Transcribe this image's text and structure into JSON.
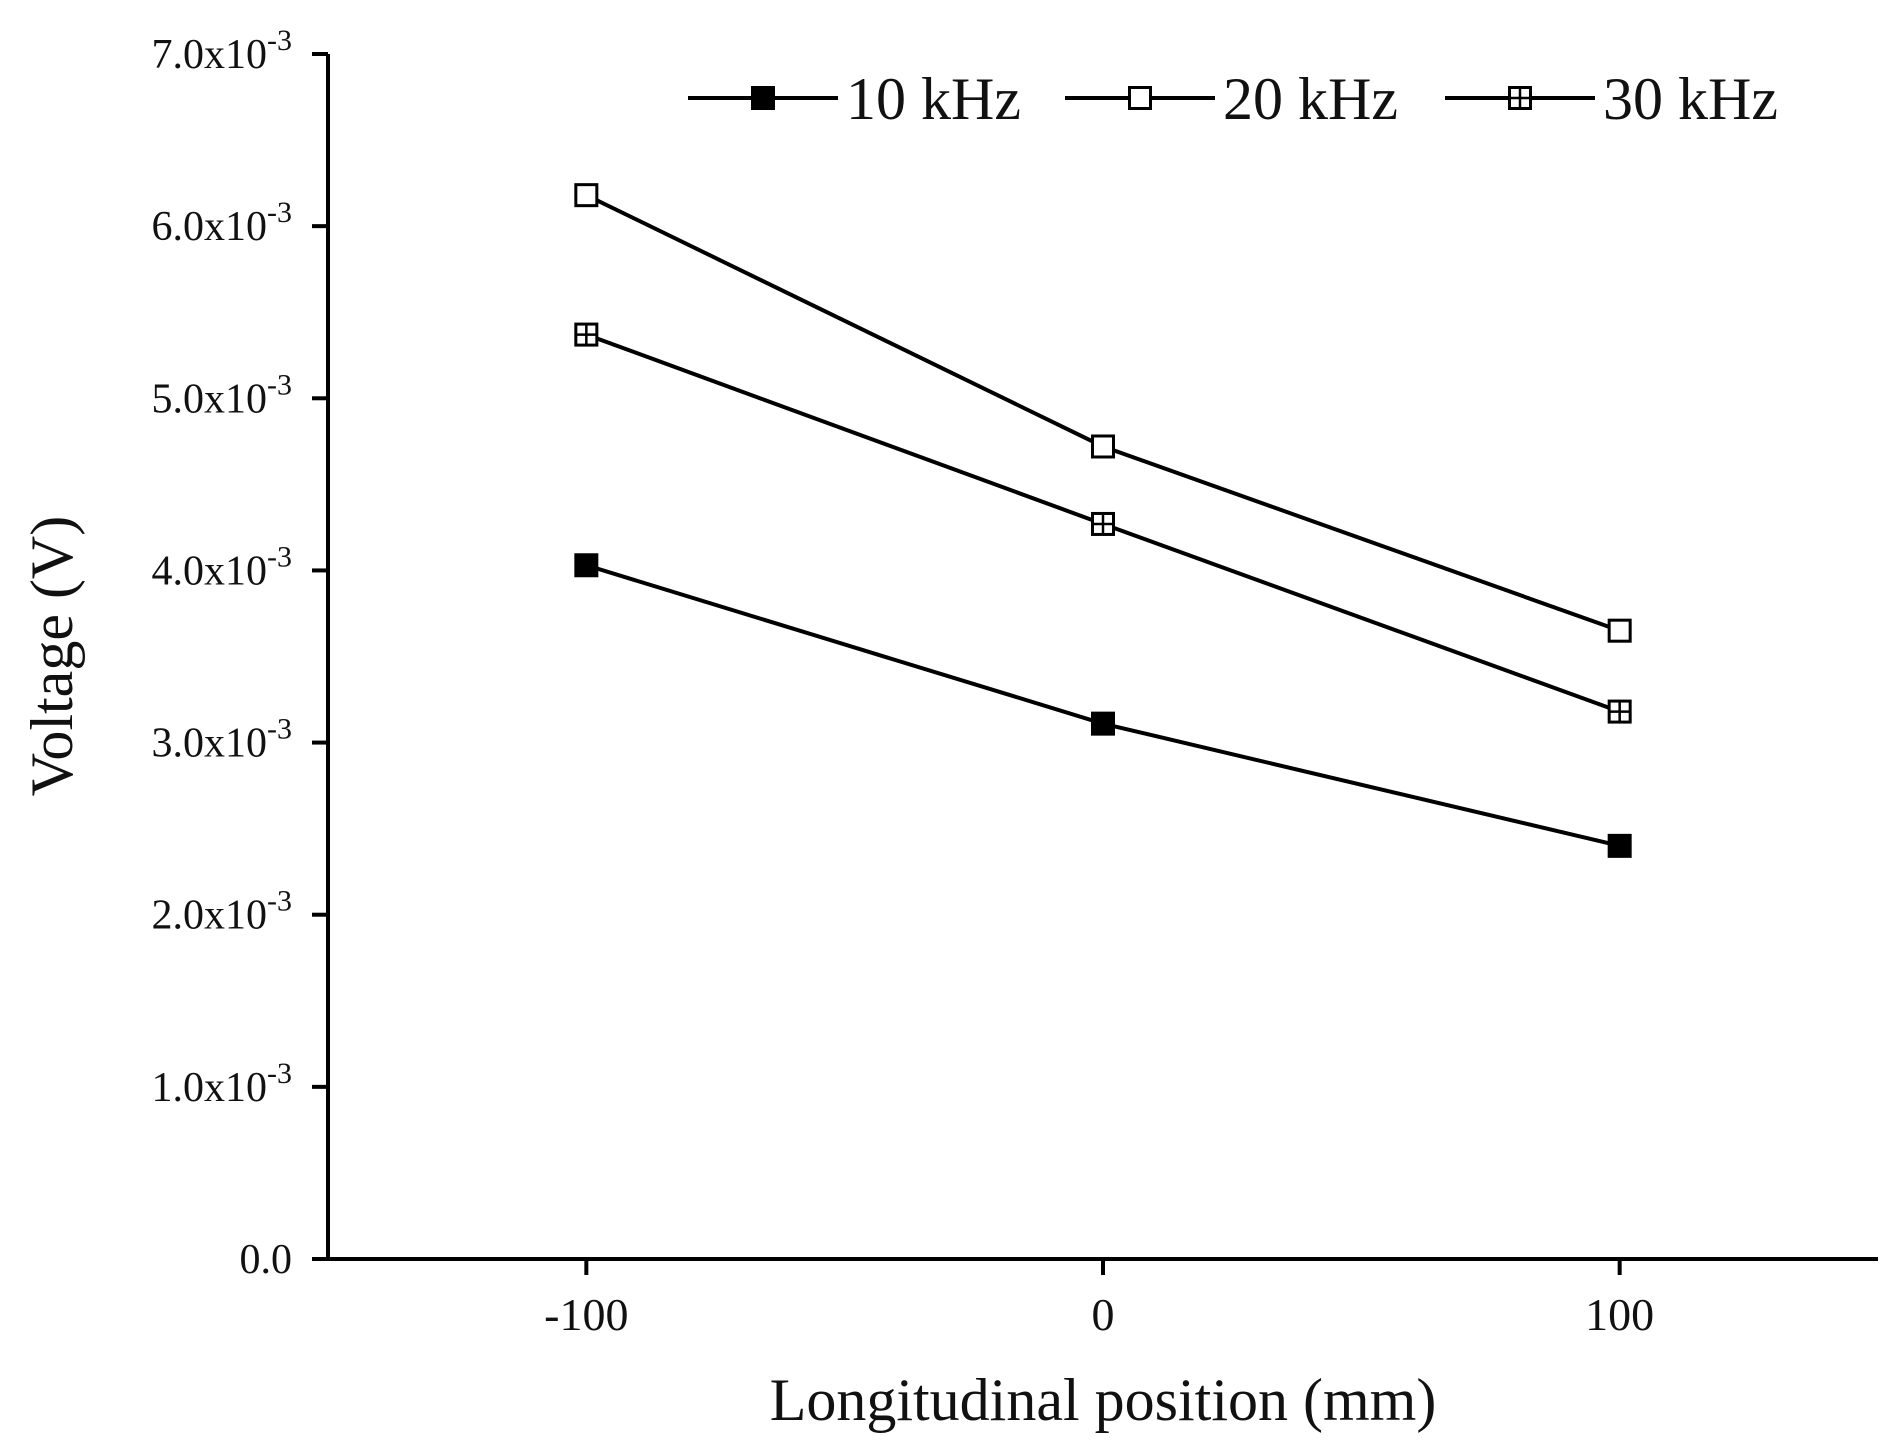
{
  "chart_data": {
    "type": "line",
    "title": "",
    "xlabel": "Longitudinal position (mm)",
    "ylabel": "Voltage (V)",
    "xlim": [
      -150,
      150
    ],
    "ylim": [
      0,
      0.007
    ],
    "x": [
      -100,
      0,
      100
    ],
    "x_ticks": [
      {
        "value": -100,
        "label": "-100"
      },
      {
        "value": 0,
        "label": "0"
      },
      {
        "value": 100,
        "label": "100"
      }
    ],
    "y_ticks": [
      {
        "value": 0.0,
        "mantissa": "0.0",
        "exp": ""
      },
      {
        "value": 0.001,
        "mantissa": "1.0x10",
        "exp": "-3"
      },
      {
        "value": 0.002,
        "mantissa": "2.0x10",
        "exp": "-3"
      },
      {
        "value": 0.003,
        "mantissa": "3.0x10",
        "exp": "-3"
      },
      {
        "value": 0.004,
        "mantissa": "4.0x10",
        "exp": "-3"
      },
      {
        "value": 0.005,
        "mantissa": "5.0x10",
        "exp": "-3"
      },
      {
        "value": 0.006,
        "mantissa": "6.0x10",
        "exp": "-3"
      },
      {
        "value": 0.007,
        "mantissa": "7.0x10",
        "exp": "-3"
      }
    ],
    "series": [
      {
        "name": "10 kHz",
        "marker": "filled-square",
        "values": [
          0.00403,
          0.00311,
          0.0024
        ]
      },
      {
        "name": "20 kHz",
        "marker": "open-square",
        "values": [
          0.00618,
          0.00472,
          0.00365
        ]
      },
      {
        "name": "30 kHz",
        "marker": "crossed-square",
        "values": [
          0.00537,
          0.00427,
          0.00318
        ]
      }
    ],
    "legend_position": "top-right",
    "grid": false,
    "colors": {
      "line": "#000000",
      "background": "#ffffff"
    }
  }
}
